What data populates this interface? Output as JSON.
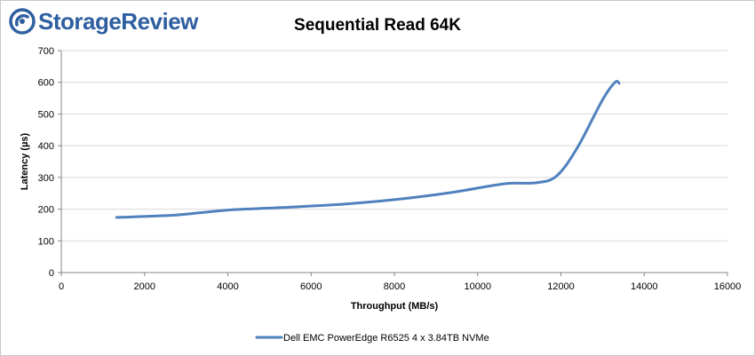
{
  "brand": {
    "name": "StorageReview",
    "accent": "#2e5fa0"
  },
  "chart_data": {
    "type": "line",
    "title": "Sequential Read 64K",
    "xlabel": "Throughput (MB/s)",
    "ylabel": "Latency (µs)",
    "xlim": [
      0,
      16000
    ],
    "ylim": [
      0,
      700
    ],
    "x_ticks": [
      0,
      2000,
      4000,
      6000,
      8000,
      10000,
      12000,
      14000,
      16000
    ],
    "y_ticks": [
      0,
      100,
      200,
      300,
      400,
      500,
      600,
      700
    ],
    "grid": "horizontal",
    "legend": "bottom",
    "series": [
      {
        "name": "Dell EMC PowerEdge R6525 4 x 3.84TB NVMe",
        "color": "#4f81bd",
        "x": [
          1330,
          2700,
          4000,
          5300,
          6700,
          8000,
          9350,
          10650,
          11400,
          11900,
          12400,
          13000,
          13300,
          13400
        ],
        "y": [
          174,
          181,
          197,
          205,
          215,
          230,
          252,
          280,
          283,
          305,
          395,
          545,
          600,
          597
        ]
      }
    ]
  }
}
